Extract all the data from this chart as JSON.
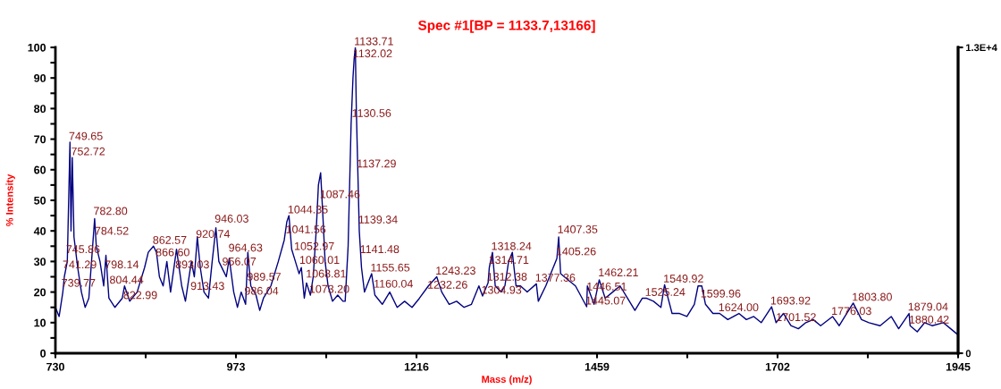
{
  "chart_data": {
    "type": "line",
    "title": "Spec #1[BP = 1133.7,13166]",
    "xlabel": "Mass (m/z)",
    "ylabel": "% Intensity",
    "series": [
      {
        "color": "#000080",
        "x": [
          730,
          735,
          740,
          742,
          746,
          749.6,
          751,
          752.7,
          755,
          760,
          765,
          770,
          775,
          782.8,
          785,
          790,
          795,
          798,
          802,
          810,
          820,
          823,
          830,
          840,
          850,
          855,
          862,
          866,
          870,
          875,
          880,
          885,
          893,
          900,
          905,
          913,
          917,
          921,
          925,
          930,
          936,
          941,
          946,
          950,
          956,
          960,
          964,
          970,
          975,
          980,
          986,
          989,
          993,
          1000,
          1005,
          1010,
          1020,
          1030,
          1038,
          1041.5,
          1044.35,
          1048,
          1053,
          1058,
          1061,
          1065,
          1068,
          1073.2,
          1077,
          1081,
          1084,
          1087,
          1090,
          1093,
          1097,
          1103,
          1110,
          1117,
          1120,
          1124,
          1128,
          1130.5,
          1132,
          1133.7,
          1135,
          1137,
          1139,
          1142,
          1146,
          1155.65,
          1160,
          1170,
          1180,
          1190,
          1200,
          1210,
          1220,
          1232,
          1243.23,
          1250,
          1260,
          1270,
          1280,
          1290,
          1300,
          1304.93,
          1312.38,
          1314,
          1318.24,
          1322,
          1330,
          1335,
          1340,
          1345,
          1350,
          1356,
          1365,
          1377.36,
          1380,
          1390,
          1400,
          1405,
          1407.4,
          1410,
          1420,
          1430,
          1445.07,
          1446,
          1455,
          1462,
          1470,
          1480,
          1490,
          1500,
          1510,
          1520,
          1525.24,
          1535,
          1545,
          1549.92,
          1560,
          1570,
          1580,
          1590,
          1595,
          1600,
          1605,
          1615,
          1624,
          1635,
          1650,
          1660,
          1670,
          1680,
          1693.92,
          1700,
          1710,
          1720,
          1730,
          1740,
          1750,
          1760,
          1776,
          1785,
          1795,
          1803.8,
          1815,
          1825,
          1840,
          1855,
          1865,
          1879,
          1880.42,
          1890,
          1900,
          1910,
          1925,
          1935,
          1945
        ],
        "values": [
          15,
          12,
          20,
          25,
          30,
          69,
          40,
          64,
          38,
          28,
          20,
          15,
          18,
          44,
          35,
          30,
          22,
          32,
          18,
          15,
          18,
          22,
          17,
          20,
          28,
          33,
          35,
          33,
          25,
          22,
          30,
          20,
          34,
          22,
          17,
          30,
          25,
          38,
          28,
          20,
          18,
          30,
          41,
          30,
          27,
          25,
          31,
          20,
          15,
          20,
          16,
          33,
          22,
          19,
          14,
          18,
          22,
          30,
          37,
          43,
          45,
          34,
          30,
          26,
          28,
          18,
          23,
          19,
          25,
          40,
          55,
          59,
          45,
          30,
          22,
          17,
          19,
          17,
          17,
          35,
          75,
          90,
          96,
          100,
          80,
          60,
          40,
          28,
          20,
          26,
          19,
          16,
          20,
          15,
          17,
          15,
          18,
          22,
          25,
          20,
          16,
          17,
          15,
          16,
          22,
          18.7,
          23,
          28,
          33,
          22,
          20,
          22,
          30,
          33,
          22,
          22,
          20,
          22.7,
          17,
          22,
          28,
          31,
          38,
          26,
          24,
          22,
          15.2,
          22,
          16,
          24,
          18,
          20,
          22,
          18,
          14,
          18,
          18,
          17,
          15,
          22.4,
          13,
          13,
          12,
          16,
          22,
          22,
          16,
          13,
          13,
          11,
          13,
          11,
          12,
          10,
          15.2,
          10,
          13,
          9,
          8,
          10,
          11,
          9,
          12,
          9,
          13,
          16.4,
          11,
          10,
          9,
          12,
          8,
          13,
          9,
          7,
          10,
          9,
          10,
          8,
          6
        ]
      }
    ],
    "annotations": [
      {
        "text": "749.65",
        "x": 749.65,
        "y": 69
      },
      {
        "text": "752.72",
        "x": 752.72,
        "y": 64
      },
      {
        "text": "782.80",
        "x": 782.8,
        "y": 44.5
      },
      {
        "text": "784.52",
        "x": 784.52,
        "y": 38
      },
      {
        "text": "745.86",
        "x": 745.86,
        "y": 32
      },
      {
        "text": "741.29",
        "x": 741.29,
        "y": 27
      },
      {
        "text": "739.77",
        "x": 739.77,
        "y": 21
      },
      {
        "text": "798.14",
        "x": 798.14,
        "y": 27
      },
      {
        "text": "804.44",
        "x": 804.44,
        "y": 22
      },
      {
        "text": "822.99",
        "x": 822.99,
        "y": 17
      },
      {
        "text": "862.57",
        "x": 862.57,
        "y": 35
      },
      {
        "text": "866.60",
        "x": 866.6,
        "y": 31
      },
      {
        "text": "893.03",
        "x": 893.03,
        "y": 27
      },
      {
        "text": "913.43",
        "x": 913.43,
        "y": 20
      },
      {
        "text": "920.74",
        "x": 920.74,
        "y": 37
      },
      {
        "text": "946.03",
        "x": 946.03,
        "y": 42
      },
      {
        "text": "964.63",
        "x": 964.63,
        "y": 32.5
      },
      {
        "text": "956.07",
        "x": 956.07,
        "y": 28
      },
      {
        "text": "989.57",
        "x": 989.57,
        "y": 23
      },
      {
        "text": "986.04",
        "x": 986.04,
        "y": 18.4
      },
      {
        "text": "1044.35",
        "x": 1044.35,
        "y": 45
      },
      {
        "text": "1041.56",
        "x": 1041.56,
        "y": 38.5
      },
      {
        "text": "1052.97",
        "x": 1052.97,
        "y": 33
      },
      {
        "text": "1060.01",
        "x": 1060.01,
        "y": 28.5
      },
      {
        "text": "1068.81",
        "x": 1068.81,
        "y": 24
      },
      {
        "text": "1073.20",
        "x": 1073.2,
        "y": 19
      },
      {
        "text": "1087.46",
        "x": 1087.46,
        "y": 50
      },
      {
        "text": "1133.71",
        "x": 1133.71,
        "y": 100
      },
      {
        "text": "1132.02",
        "x": 1132.02,
        "y": 96
      },
      {
        "text": "1130.56",
        "x": 1130.56,
        "y": 76.5
      },
      {
        "text": "1137.29",
        "x": 1137.29,
        "y": 60
      },
      {
        "text": "1139.34",
        "x": 1139.34,
        "y": 41.7
      },
      {
        "text": "1141.48",
        "x": 1141.48,
        "y": 32
      },
      {
        "text": "1155.65",
        "x": 1155.65,
        "y": 26
      },
      {
        "text": "1160.04",
        "x": 1160.04,
        "y": 20.7
      },
      {
        "text": "1243.23",
        "x": 1243.23,
        "y": 25
      },
      {
        "text": "1232.26",
        "x": 1232.26,
        "y": 20.4
      },
      {
        "text": "1318.24",
        "x": 1318.24,
        "y": 33
      },
      {
        "text": "1314.71",
        "x": 1314.71,
        "y": 28.5
      },
      {
        "text": "1312.38",
        "x": 1312.38,
        "y": 23
      },
      {
        "text": "1304.93",
        "x": 1304.93,
        "y": 18.7
      },
      {
        "text": "1377.36",
        "x": 1377.36,
        "y": 22.7
      },
      {
        "text": "1407.35",
        "x": 1407.35,
        "y": 38.5
      },
      {
        "text": "1405.26",
        "x": 1405.26,
        "y": 31.3
      },
      {
        "text": "1462.21",
        "x": 1462.21,
        "y": 24.4
      },
      {
        "text": "1446.51",
        "x": 1446.51,
        "y": 19.8
      },
      {
        "text": "1445.07",
        "x": 1445.07,
        "y": 15.2
      },
      {
        "text": "1525.24",
        "x": 1525.24,
        "y": 18
      },
      {
        "text": "1549.92",
        "x": 1549.92,
        "y": 22.4
      },
      {
        "text": "1599.96",
        "x": 1599.96,
        "y": 17.5
      },
      {
        "text": "1624.00",
        "x": 1624.0,
        "y": 13
      },
      {
        "text": "1693.92",
        "x": 1693.92,
        "y": 15.2
      },
      {
        "text": "1701.52",
        "x": 1701.52,
        "y": 9.8
      },
      {
        "text": "1776.03",
        "x": 1776.03,
        "y": 11.8
      },
      {
        "text": "1803.80",
        "x": 1803.8,
        "y": 16.4
      },
      {
        "text": "1879.04",
        "x": 1879.04,
        "y": 13.2
      },
      {
        "text": "1880.42",
        "x": 1880.42,
        "y": 9
      }
    ],
    "xlim": [
      730,
      1945
    ],
    "xticks": [
      730,
      {
        "value": 851.5,
        "label": null
      },
      973,
      {
        "value": 1094.5,
        "label": null
      },
      1216,
      {
        "value": 1337.5,
        "label": null
      },
      1459,
      {
        "value": 1580.5,
        "label": null
      },
      1702,
      {
        "value": 1823.5,
        "label": null
      },
      1945
    ],
    "ylim": [
      0,
      100
    ],
    "yticks": [
      0,
      {
        "value": 5,
        "label": null
      },
      10,
      {
        "value": 15,
        "label": null
      },
      20,
      {
        "value": 25,
        "label": null
      },
      30,
      {
        "value": 35,
        "label": null
      },
      40,
      {
        "value": 45,
        "label": null
      },
      50,
      {
        "value": 55,
        "label": null
      },
      60,
      {
        "value": 65,
        "label": null
      },
      70,
      {
        "value": 75,
        "label": null
      },
      80,
      {
        "value": 85,
        "label": null
      },
      90,
      {
        "value": 95,
        "label": null
      },
      100
    ],
    "y2lim": [
      0,
      13000
    ],
    "y2ticks": [
      0,
      {
        "value": 13000,
        "label": "1.3E+4"
      }
    ],
    "grid": false,
    "legend": false,
    "marker": "none",
    "line_style": "solid"
  }
}
